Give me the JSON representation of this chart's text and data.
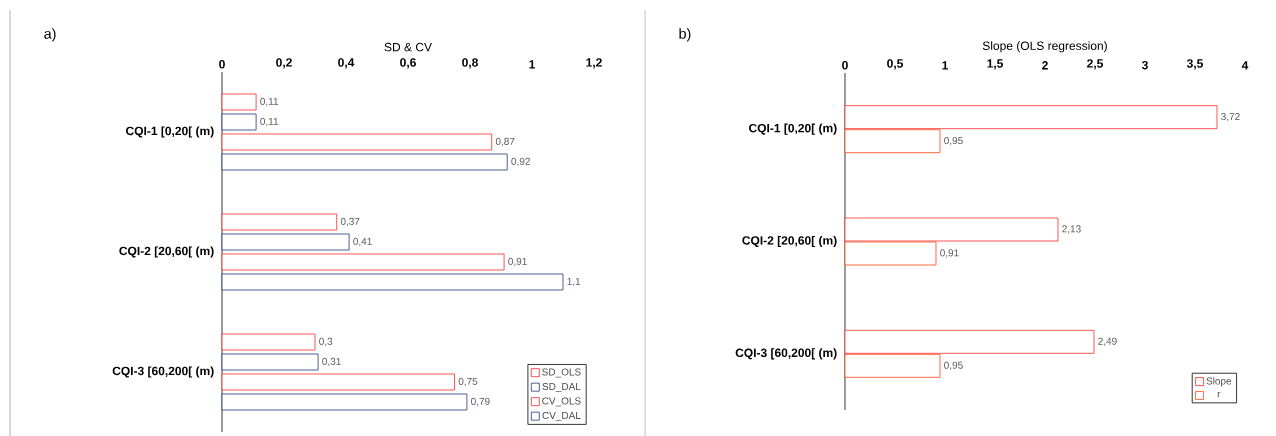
{
  "chart_data": [
    {
      "type": "bar",
      "orientation": "horizontal",
      "xlabel": "SD & CV",
      "annotations": [
        "a)"
      ],
      "categories": [
        "CQI-1 [0,20[ (m)",
        "CQI-2 [20,60[ (m)",
        "CQI-3 [60,200[ (m)"
      ],
      "xlim": [
        0,
        1.2
      ],
      "xticks": [
        0,
        {
          "value": 0.2,
          "label": "0,2"
        },
        {
          "value": 0.4,
          "label": "0,4"
        },
        {
          "value": 0.6,
          "label": "0,6"
        },
        {
          "value": 0.8,
          "label": "0,8"
        },
        1,
        {
          "value": 1.2,
          "label": "1,2"
        }
      ],
      "legend": "bottom right",
      "grid": false,
      "series": [
        {
          "name": "SD_OLS",
          "color": "#ff2a2a",
          "values": [
            0.11,
            0.37,
            0.3
          ],
          "value_labels": [
            "0,11",
            "0,37",
            "0,3"
          ]
        },
        {
          "name": "SD_DAL",
          "color": "#1f3a7a",
          "values": [
            0.11,
            0.41,
            0.31
          ],
          "value_labels": [
            "0,11",
            "0,41",
            "0,31"
          ]
        },
        {
          "name": "CV_OLS",
          "color": "#ff2a2a",
          "values": [
            0.87,
            0.91,
            0.75
          ],
          "value_labels": [
            "0,87",
            "0,91",
            "0,75"
          ]
        },
        {
          "name": "CV_DAL",
          "color": "#1f3a7a",
          "values": [
            0.92,
            1.1,
            0.79
          ],
          "value_labels": [
            "0,92",
            "1,1",
            "0,79"
          ]
        }
      ]
    },
    {
      "type": "bar",
      "orientation": "horizontal",
      "xlabel": "Slope (OLS regression)",
      "annotations": [
        "b)"
      ],
      "categories": [
        "CQI-1 [0,20[ (m)",
        "CQI-2 [20,60[ (m)",
        "CQI-3 [60,200[ (m)"
      ],
      "xlim": [
        0,
        4
      ],
      "xticks": [
        0,
        {
          "value": 0.5,
          "label": "0,5"
        },
        1,
        {
          "value": 1.5,
          "label": "1,5"
        },
        2,
        {
          "value": 2.5,
          "label": "2,5"
        },
        3,
        {
          "value": 3.5,
          "label": "3,5"
        },
        4
      ],
      "legend": "bottom right",
      "grid": false,
      "series": [
        {
          "name": "Slope",
          "color": "#ff2a2a",
          "values": [
            3.72,
            2.13,
            2.49
          ],
          "value_labels": [
            "3,72",
            "2,13",
            "2,49"
          ]
        },
        {
          "name": "r",
          "color": "#ff4513",
          "values": [
            0.95,
            0.91,
            0.95
          ],
          "value_labels": [
            "0,95",
            "0,91",
            "0,95"
          ]
        }
      ]
    }
  ]
}
